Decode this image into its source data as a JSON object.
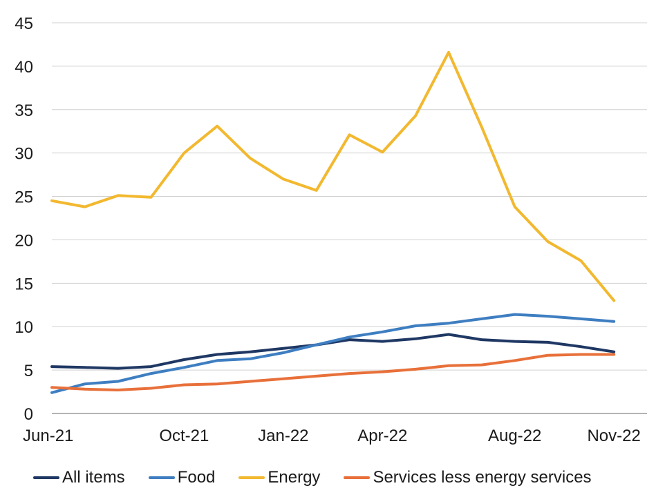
{
  "chart_data": {
    "type": "line",
    "title": "",
    "xlabel": "",
    "ylabel": "",
    "ylim": [
      0,
      45
    ],
    "yticks": [
      0,
      5,
      10,
      15,
      20,
      25,
      30,
      35,
      40,
      45
    ],
    "grid": true,
    "legend_position": "bottom",
    "x": [
      "Jun-21",
      "Jul-21",
      "Aug-21",
      "Sep-21",
      "Oct-21",
      "Nov-21",
      "Dec-21",
      "Jan-22",
      "Feb-22",
      "Mar-22",
      "Apr-22",
      "May-22",
      "Jun-22",
      "Jul-22",
      "Aug-22",
      "Sep-22",
      "Oct-22",
      "Nov-22",
      "Dec-22"
    ],
    "x_tick_labels": [
      "Jun-21",
      "Oct-21",
      "Jan-22",
      "Apr-22",
      "Aug-22",
      "Nov-22"
    ],
    "series": [
      {
        "name": "All items",
        "color": "#1f3864",
        "values": [
          5.4,
          5.3,
          5.2,
          5.4,
          6.2,
          6.8,
          7.1,
          7.5,
          7.9,
          8.5,
          8.3,
          8.6,
          9.1,
          8.5,
          8.3,
          8.2,
          7.7,
          7.1,
          null
        ]
      },
      {
        "name": "Food",
        "color": "#3e7ec1",
        "values": [
          2.4,
          3.4,
          3.7,
          4.6,
          5.3,
          6.1,
          6.3,
          7.0,
          7.9,
          8.8,
          9.4,
          10.1,
          10.4,
          10.9,
          11.4,
          11.2,
          10.9,
          10.6,
          null
        ]
      },
      {
        "name": "Energy",
        "color": "#f2b82f",
        "values": [
          24.5,
          23.8,
          25.1,
          24.9,
          30.0,
          33.1,
          29.4,
          27.0,
          25.7,
          32.1,
          30.1,
          34.3,
          41.6,
          33.0,
          23.8,
          19.8,
          17.6,
          13.0,
          null
        ]
      },
      {
        "name": "Services less energy services",
        "color": "#e8703a",
        "values": [
          3.0,
          2.8,
          2.7,
          2.9,
          3.3,
          3.4,
          3.7,
          4.0,
          4.3,
          4.6,
          4.8,
          5.1,
          5.5,
          5.6,
          6.1,
          6.7,
          6.8,
          6.8,
          null
        ]
      }
    ]
  }
}
